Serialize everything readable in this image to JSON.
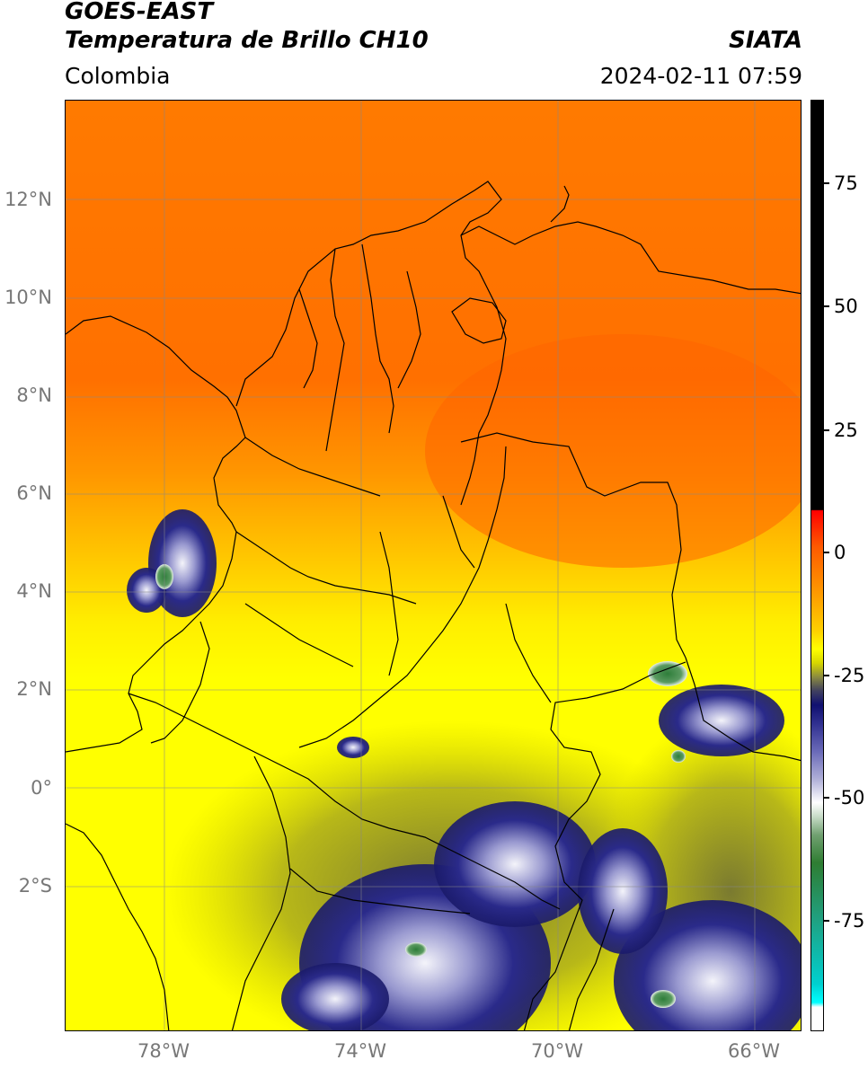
{
  "header": {
    "line1": "GOES-EAST",
    "line2": "Temperatura de Brillo CH10",
    "brand": "SIATA",
    "region": "Colombia",
    "timestamp": "2024-02-11 07:59"
  },
  "axes": {
    "lat_labels": [
      "12°N",
      "10°N",
      "8°N",
      "6°N",
      "4°N",
      "2°N",
      "0°",
      "2°S"
    ],
    "lon_labels": [
      "78°W",
      "74°W",
      "70°W",
      "66°W"
    ]
  },
  "colorbar": {
    "tick_labels": [
      "75",
      "50",
      "25",
      "0",
      "-25",
      "-50",
      "-75"
    ]
  },
  "colors": {
    "warm_north": "#ff6a00",
    "mid": "#ff9a00",
    "yellow": "#ffff00",
    "olive": "#b8b820",
    "deep_blue": "#1a1a7a",
    "white_cloud": "#f0f0f8",
    "green_cold": "#3a8a4a"
  }
}
